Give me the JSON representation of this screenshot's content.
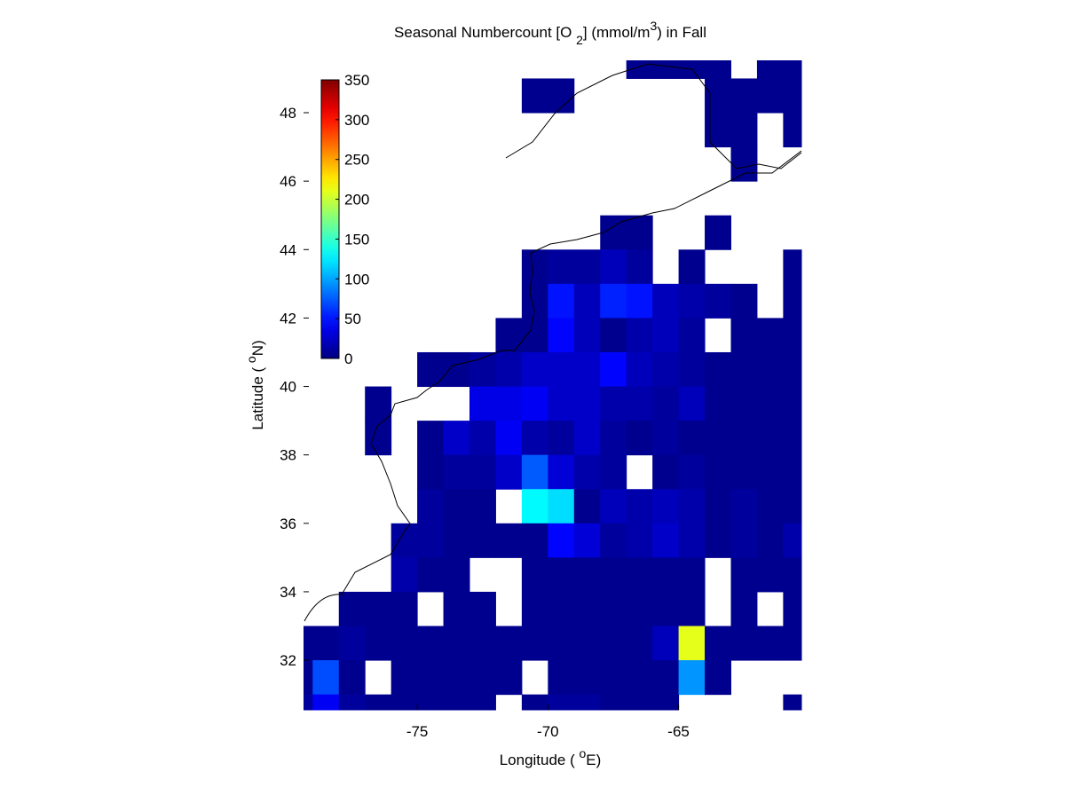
{
  "chart_data": {
    "type": "heatmap",
    "title": [
      "Seasonal Numbercount [O ",
      "2",
      "] (mmol/m",
      "3",
      ") in  Fall"
    ],
    "xlabel": [
      "Longitude ( ",
      "o",
      "E)"
    ],
    "ylabel": [
      "Latitude ( ",
      "o",
      "N)"
    ],
    "x": [
      -79.5,
      -78.5,
      -77.5,
      -76.5,
      -75.5,
      -74.5,
      -73.5,
      -72.5,
      -71.5,
      -70.5,
      -69.5,
      -68.5,
      -67.5,
      -66.5,
      -65.5,
      -64.5,
      -63.5,
      -62.5,
      -61.5,
      -60.5
    ],
    "y": [
      49.5,
      48.5,
      47.5,
      46.5,
      45.5,
      44.5,
      43.5,
      42.5,
      41.5,
      40.5,
      39.5,
      38.5,
      37.5,
      36.5,
      35.5,
      34.5,
      33.5,
      32.5,
      31.5,
      30.5
    ],
    "z": [
      [
        null,
        null,
        null,
        null,
        null,
        null,
        null,
        null,
        null,
        null,
        null,
        null,
        null,
        5,
        5,
        5,
        5,
        null,
        5,
        5
      ],
      [
        null,
        null,
        null,
        null,
        null,
        null,
        null,
        null,
        null,
        5,
        5,
        null,
        null,
        null,
        null,
        null,
        5,
        5,
        5,
        5
      ],
      [
        null,
        null,
        null,
        null,
        null,
        null,
        null,
        null,
        null,
        null,
        null,
        null,
        null,
        null,
        null,
        null,
        5,
        5,
        null,
        5
      ],
      [
        null,
        null,
        null,
        null,
        null,
        null,
        null,
        null,
        null,
        null,
        null,
        null,
        null,
        null,
        null,
        null,
        null,
        5,
        null,
        null
      ],
      [
        null,
        null,
        null,
        null,
        null,
        null,
        null,
        null,
        null,
        null,
        null,
        null,
        null,
        null,
        null,
        null,
        null,
        null,
        null,
        null
      ],
      [
        null,
        null,
        null,
        null,
        null,
        null,
        null,
        null,
        null,
        null,
        null,
        null,
        5,
        5,
        null,
        null,
        5,
        null,
        null,
        null
      ],
      [
        null,
        null,
        null,
        null,
        null,
        null,
        null,
        null,
        null,
        5,
        10,
        10,
        20,
        10,
        null,
        5,
        null,
        null,
        null,
        5
      ],
      [
        null,
        null,
        null,
        null,
        null,
        null,
        null,
        null,
        null,
        5,
        50,
        20,
        55,
        50,
        20,
        15,
        10,
        5,
        null,
        5
      ],
      [
        null,
        null,
        null,
        null,
        null,
        null,
        null,
        null,
        5,
        5,
        45,
        20,
        5,
        15,
        20,
        10,
        null,
        5,
        5,
        5
      ],
      [
        null,
        null,
        null,
        null,
        null,
        5,
        5,
        10,
        15,
        25,
        25,
        25,
        45,
        20,
        15,
        10,
        5,
        5,
        5,
        5
      ],
      [
        null,
        null,
        null,
        5,
        null,
        null,
        null,
        35,
        35,
        40,
        25,
        25,
        15,
        15,
        10,
        20,
        5,
        5,
        5,
        5
      ],
      [
        null,
        null,
        null,
        5,
        null,
        5,
        25,
        15,
        40,
        15,
        10,
        25,
        10,
        5,
        10,
        5,
        5,
        5,
        5,
        5
      ],
      [
        null,
        null,
        null,
        null,
        null,
        5,
        10,
        10,
        25,
        75,
        30,
        15,
        10,
        null,
        5,
        10,
        5,
        5,
        5,
        5
      ],
      [
        null,
        null,
        null,
        null,
        null,
        10,
        5,
        5,
        null,
        130,
        120,
        5,
        20,
        15,
        20,
        15,
        5,
        10,
        5,
        5
      ],
      [
        null,
        null,
        null,
        null,
        10,
        10,
        5,
        5,
        5,
        5,
        45,
        30,
        10,
        15,
        25,
        15,
        5,
        10,
        5,
        15
      ],
      [
        null,
        null,
        null,
        null,
        15,
        5,
        5,
        null,
        null,
        5,
        5,
        5,
        5,
        5,
        5,
        5,
        null,
        5,
        5,
        5
      ],
      [
        null,
        null,
        5,
        5,
        5,
        null,
        5,
        5,
        null,
        5,
        5,
        5,
        5,
        5,
        5,
        5,
        null,
        5,
        null,
        5
      ],
      [
        5,
        5,
        10,
        5,
        5,
        5,
        5,
        5,
        5,
        5,
        5,
        5,
        5,
        5,
        20,
        210,
        5,
        5,
        5,
        5
      ],
      [
        5,
        70,
        5,
        null,
        5,
        5,
        5,
        5,
        5,
        null,
        5,
        5,
        5,
        5,
        5,
        95,
        5,
        null,
        null,
        null
      ],
      [
        10,
        40,
        10,
        5,
        5,
        5,
        5,
        5,
        null,
        5,
        10,
        10,
        5,
        5,
        5,
        null,
        null,
        null,
        null,
        5
      ]
    ],
    "xlim": [
      -79.35,
      -60.3
    ],
    "ylim": [
      30.55,
      49.53
    ],
    "xticks": [
      -75,
      -70,
      -65
    ],
    "yticks": [
      32,
      34,
      36,
      38,
      40,
      42,
      44,
      46,
      48
    ],
    "clim": [
      0,
      350
    ],
    "cticks": [
      0,
      50,
      100,
      150,
      200,
      250,
      300,
      350
    ],
    "colormap": "jet"
  }
}
